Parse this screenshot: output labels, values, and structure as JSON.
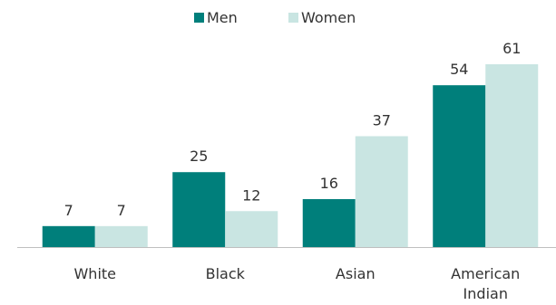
{
  "chart_data": {
    "type": "bar",
    "title": "",
    "xlabel": "",
    "ylabel": "",
    "categories": [
      "White",
      "Black",
      "Asian",
      "American Indian"
    ],
    "series": [
      {
        "name": "Men",
        "color": "#007F7B",
        "values": [
          7,
          25,
          16,
          54
        ]
      },
      {
        "name": "Women",
        "color": "#C9E5E2",
        "values": [
          7,
          12,
          37,
          61
        ]
      }
    ],
    "ylim": [
      0,
      61
    ],
    "grid": false,
    "legend": "top-center"
  }
}
